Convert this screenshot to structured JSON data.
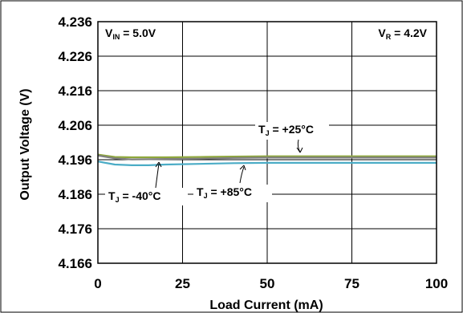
{
  "chart_data": {
    "type": "line",
    "xlabel": "Load Current (mA)",
    "ylabel": "Output Voltage (V)",
    "xlim": [
      0,
      100
    ],
    "ylim": [
      4.166,
      4.236
    ],
    "x_ticks": [
      "0",
      "25",
      "50",
      "75",
      "100"
    ],
    "y_ticks": [
      "4.236",
      "4.226",
      "4.216",
      "4.206",
      "4.196",
      "4.186",
      "4.176",
      "4.166"
    ],
    "grid": true,
    "legend": "none",
    "annotations": {
      "vin": {
        "main": "V",
        "sub": "IN",
        "rest": " = 5.0V"
      },
      "vr": {
        "main": "V",
        "sub": "R",
        "rest": " = 4.2V"
      }
    },
    "series": [
      {
        "label_main": "T",
        "label_sub": "J",
        "label_rest": " = +25°C",
        "color": "#8fa83c",
        "x": [
          0,
          5,
          10,
          20,
          30,
          40,
          50,
          60,
          70,
          80,
          90,
          100
        ],
        "y": [
          4.1975,
          4.1968,
          4.1967,
          4.1967,
          4.1968,
          4.1969,
          4.197,
          4.197,
          4.197,
          4.197,
          4.197,
          4.197
        ]
      },
      {
        "label_main": "T",
        "label_sub": "J",
        "label_rest": " = -40°C",
        "color": "#7f7f7f",
        "x": [
          0,
          5,
          10,
          20,
          30,
          40,
          50,
          60,
          70,
          80,
          90,
          100
        ],
        "y": [
          4.1972,
          4.1964,
          4.1961,
          4.1962,
          4.1963,
          4.1965,
          4.1966,
          4.1966,
          4.1966,
          4.1966,
          4.1966,
          4.1966
        ]
      },
      {
        "label_main": "T",
        "label_sub": "J",
        "label_rest": " = +85°C",
        "color": "#4bacc6",
        "x": [
          0,
          5,
          10,
          15,
          20,
          30,
          40,
          50,
          60,
          70,
          80,
          90,
          100
        ],
        "y": [
          4.1955,
          4.1946,
          4.1944,
          4.1944,
          4.1946,
          4.1948,
          4.195,
          4.1951,
          4.1951,
          4.1951,
          4.1951,
          4.1951,
          4.1951
        ]
      }
    ]
  }
}
